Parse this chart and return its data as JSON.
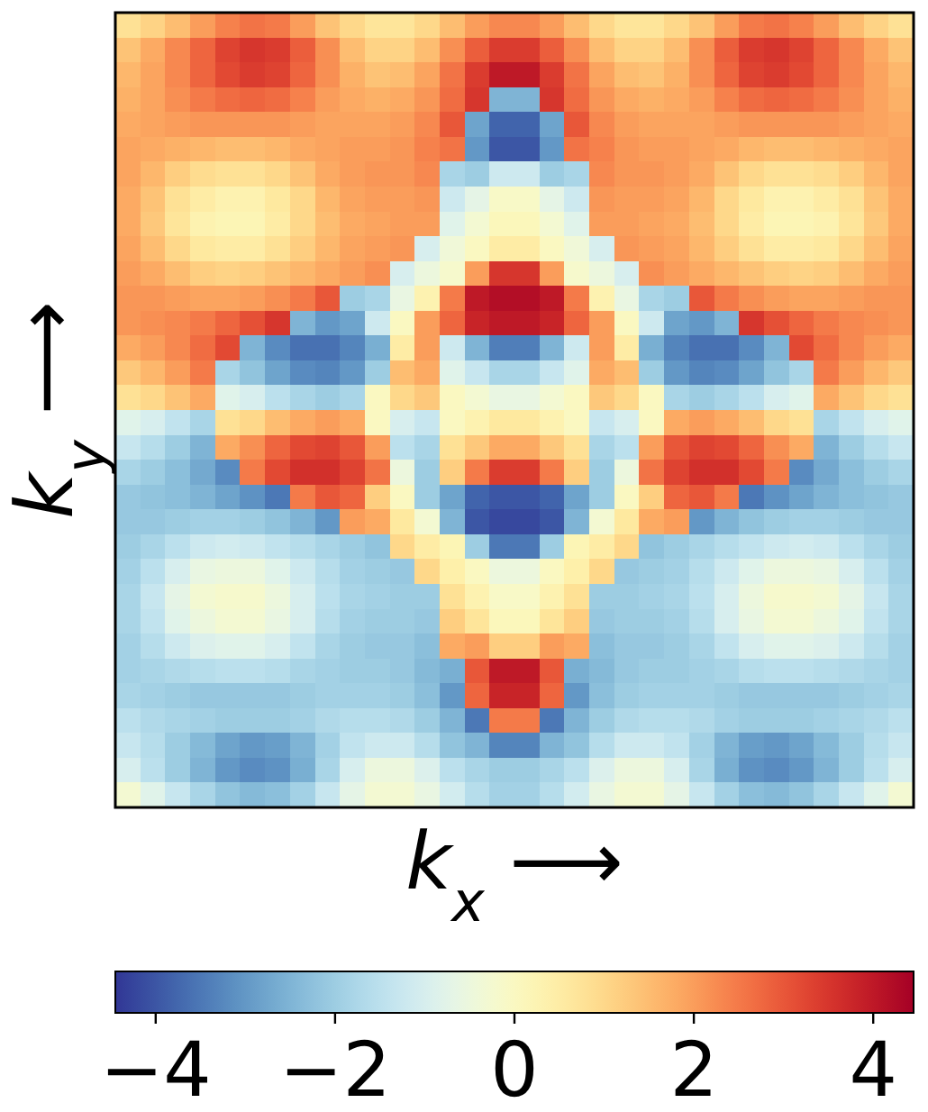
{
  "chart_data": {
    "type": "heatmap",
    "xlabel": "k$_{x}$ ⟶",
    "ylabel": "k$_{y}$ ⟶",
    "categories": [
      null,
      null,
      null,
      null,
      null,
      null,
      null,
      null,
      null,
      null,
      null,
      null,
      null,
      null,
      null,
      null,
      null,
      null,
      null,
      null,
      null,
      null,
      null,
      null,
      null,
      null,
      null,
      null,
      null,
      null,
      null,
      null
    ],
    "y_categories": [
      null,
      null,
      null,
      null,
      null,
      null,
      null,
      null,
      null,
      null,
      null,
      null,
      null,
      null,
      null,
      null,
      null,
      null,
      null,
      null,
      null,
      null,
      null,
      null,
      null,
      null,
      null,
      null,
      null,
      null,
      null,
      null
    ],
    "clim": [
      -4.45,
      4.45
    ],
    "cticks": [
      {
        "value": -4,
        "label": "−4"
      },
      {
        "value": -2,
        "label": "−2"
      },
      0,
      2,
      4
    ],
    "cells": [
      [
        0.8,
        1.1,
        1.5,
        2,
        2.4,
        2.6,
        2.5,
        2,
        1.4,
        1,
        0.7,
        0.7,
        1,
        1.5,
        2,
        2.3,
        2.3,
        2,
        1.5,
        1,
        0.7,
        0.7,
        1,
        1.4,
        2,
        2.5,
        2.6,
        2.4,
        2,
        1.5,
        1.1,
        0.8
      ],
      [
        1.4,
        1.8,
        2.3,
        2.8,
        3.3,
        3.5,
        3.4,
        2.9,
        2.2,
        1.5,
        1.1,
        1.1,
        1.5,
        2.2,
        2.9,
        3.4,
        3.4,
        2.9,
        2.2,
        1.5,
        1.1,
        1.1,
        1.5,
        2.2,
        2.9,
        3.4,
        3.5,
        3.3,
        2.8,
        2.3,
        1.8,
        1.4
      ],
      [
        1.6,
        1.9,
        2.3,
        2.8,
        3.2,
        3.4,
        3.3,
        2.8,
        2.2,
        1.7,
        1.4,
        1.5,
        1.9,
        2.6,
        3.4,
        4,
        4,
        3.4,
        2.6,
        1.9,
        1.5,
        1.4,
        1.7,
        2.2,
        2.8,
        3.3,
        3.4,
        3.2,
        2.8,
        2.3,
        1.9,
        1.6
      ],
      [
        1.7,
        1.9,
        2.2,
        2.5,
        2.7,
        2.8,
        2.7,
        2.4,
        2,
        1.8,
        1.7,
        1.8,
        2.1,
        2.7,
        3.5,
        -2.5,
        -2.5,
        3.5,
        2.7,
        2.1,
        1.8,
        1.7,
        1.8,
        2,
        2.4,
        2.7,
        2.8,
        2.7,
        2.5,
        2.2,
        1.9,
        1.7
      ],
      [
        1.8,
        1.9,
        2,
        2.1,
        2.1,
        2.1,
        2.1,
        2,
        1.9,
        1.9,
        1.9,
        2,
        2.3,
        3,
        -2.8,
        -3.8,
        -3.8,
        -2.8,
        3,
        2.3,
        2,
        1.9,
        1.9,
        1.9,
        2,
        2.1,
        2.1,
        2.1,
        2.1,
        2,
        1.9,
        1.8
      ],
      [
        1.9,
        1.8,
        1.7,
        1.6,
        1.5,
        1.5,
        1.6,
        1.8,
        1.9,
        2,
        2,
        2.1,
        2.4,
        2.6,
        -3,
        -4,
        -4,
        -3,
        2.6,
        2.4,
        2.1,
        2,
        2,
        1.9,
        1.8,
        1.6,
        1.5,
        1.5,
        1.6,
        1.7,
        1.8,
        1.9
      ],
      [
        1.9,
        1.6,
        1.2,
        0.9,
        0.8,
        0.8,
        1,
        1.4,
        1.8,
        2,
        2.1,
        2.1,
        2.3,
        -1.8,
        -2,
        -1.2,
        -1.2,
        -2,
        -1.8,
        2.3,
        2.1,
        2.1,
        2,
        1.8,
        1.4,
        1,
        0.8,
        0.8,
        0.9,
        1.2,
        1.6,
        1.9
      ],
      [
        1.8,
        1.4,
        0.8,
        0.5,
        0.3,
        0.3,
        0.6,
        1,
        1.6,
        1.9,
        2,
        2,
        2.1,
        -1.2,
        -0.7,
        -0.1,
        -0.1,
        -0.7,
        -1.2,
        2.1,
        2,
        2,
        1.9,
        1.6,
        1,
        0.6,
        0.3,
        0.3,
        0.5,
        0.8,
        1.4,
        1.8
      ],
      [
        1.8,
        1.3,
        0.7,
        0.3,
        0.2,
        0.2,
        0.5,
        1,
        1.5,
        1.8,
        1.9,
        2,
        2,
        -0.8,
        -0.3,
        0.1,
        0.1,
        -0.3,
        -0.8,
        2,
        2,
        1.9,
        1.8,
        1.5,
        1,
        0.5,
        0.2,
        0.2,
        0.3,
        0.7,
        1.3,
        1.8
      ],
      [
        1.9,
        1.5,
        1,
        0.6,
        0.5,
        0.5,
        0.8,
        1.2,
        1.6,
        1.9,
        2,
        2.1,
        -1,
        -0.4,
        0,
        0.5,
        0.5,
        0,
        -0.4,
        -1,
        2.1,
        2,
        1.9,
        1.6,
        1.2,
        0.8,
        0.5,
        0.5,
        0.6,
        1,
        1.5,
        1.9
      ],
      [
        2,
        1.8,
        1.5,
        1.2,
        1.1,
        1.2,
        1.4,
        1.6,
        1.8,
        2,
        2.2,
        -1,
        -0.5,
        -0.2,
        2,
        3.5,
        3.5,
        2,
        -0.2,
        -0.5,
        -1,
        2.2,
        2,
        1.8,
        1.6,
        1.4,
        1.2,
        1.1,
        1.2,
        1.5,
        1.8,
        2
      ],
      [
        2.1,
        2.1,
        2,
        1.9,
        1.9,
        2,
        2.2,
        2.5,
        3,
        -2,
        -1.8,
        -0.6,
        0.3,
        2.5,
        4,
        4.2,
        4.2,
        4,
        2.5,
        0.3,
        -0.6,
        -1.8,
        -2,
        3,
        2.5,
        2.2,
        2,
        1.9,
        1.9,
        2,
        2.1,
        2.1
      ],
      [
        2.1,
        2.2,
        2.3,
        2.5,
        2.8,
        3.1,
        3.5,
        -2.5,
        -3,
        -2.8,
        -1.2,
        0,
        2,
        2.8,
        3.8,
        4,
        4,
        3.8,
        2.8,
        2,
        0,
        -1.2,
        -2.8,
        -3,
        -2.5,
        3.5,
        3.1,
        2.8,
        2.5,
        2.3,
        2.2,
        2.1
      ],
      [
        1.8,
        2,
        2.3,
        2.7,
        3.2,
        -2.5,
        -3.2,
        -3.6,
        -3.6,
        -3.3,
        -2.6,
        0.5,
        2,
        -1.2,
        -2.5,
        -3.4,
        -3.4,
        -2.5,
        -1.2,
        2,
        0.5,
        -2.6,
        -3.3,
        -3.6,
        -3.6,
        -3.2,
        -2.5,
        3.2,
        2.7,
        2.3,
        2,
        1.8
      ],
      [
        1.3,
        1.6,
        2,
        2.5,
        -1.8,
        -2.2,
        -2.8,
        -3.2,
        -3.3,
        -3,
        -2,
        1.5,
        1.8,
        -0.8,
        -1.3,
        -1.8,
        -1.8,
        -1.3,
        -0.8,
        1.8,
        1.5,
        -2,
        -3,
        -3.3,
        -3.2,
        -2.8,
        -2.2,
        -1.8,
        2.5,
        2,
        1.6,
        1.3
      ],
      [
        0.8,
        1,
        1.4,
        1.8,
        -0.8,
        -1,
        -1.5,
        -1.8,
        -2,
        -1.8,
        0,
        1,
        1.3,
        0,
        -0.3,
        -0.6,
        -0.6,
        -0.3,
        0,
        1.3,
        1,
        0,
        -1.8,
        -2,
        -1.8,
        -1.5,
        -1,
        -0.8,
        1.8,
        1.4,
        1,
        0.8
      ],
      [
        -0.8,
        -1,
        -1.4,
        -1.8,
        0.8,
        1,
        1.5,
        1.8,
        2,
        1.8,
        0,
        -1,
        -1.3,
        0,
        0.3,
        0.6,
        0.6,
        0.3,
        0,
        -1.3,
        -1,
        0,
        1.8,
        2,
        1.8,
        1.5,
        1,
        0.8,
        -1.8,
        -1.4,
        -1,
        -0.8
      ],
      [
        -1.3,
        -1.6,
        -2,
        -2.5,
        1.8,
        2.2,
        2.8,
        3.2,
        3.3,
        3,
        2,
        -1.5,
        -1.8,
        0.8,
        1.3,
        1.8,
        1.8,
        1.3,
        0.8,
        -1.8,
        -1.5,
        2,
        3,
        3.3,
        3.2,
        2.8,
        2.2,
        1.8,
        -2.5,
        -2,
        -1.6,
        -1.3
      ],
      [
        -1.8,
        -2,
        -2.3,
        -2.7,
        -3.2,
        2.5,
        3.2,
        3.6,
        3.6,
        3.3,
        2.6,
        -0.5,
        -2,
        1.2,
        2.5,
        3.4,
        3.4,
        2.5,
        1.2,
        -2,
        -0.5,
        2.6,
        3.3,
        3.6,
        3.6,
        3.2,
        2.5,
        -3.2,
        -2.7,
        -2.3,
        -2,
        -1.8
      ],
      [
        -2.1,
        -2.2,
        -2.3,
        -2.5,
        -2.8,
        -3.1,
        -3.5,
        2.5,
        3,
        2.8,
        1.2,
        0,
        -2,
        -2.8,
        -3.8,
        -4,
        -4,
        -3.8,
        -2.8,
        -2,
        0,
        1.2,
        2.8,
        3,
        2.5,
        -3.5,
        -3.1,
        -2.8,
        -2.5,
        -2.3,
        -2.2,
        -2.1
      ],
      [
        -2.1,
        -2.1,
        -2,
        -1.9,
        -1.9,
        -2,
        -2.2,
        -2.5,
        -3,
        2,
        1.8,
        0.6,
        -0.3,
        -2.5,
        -4,
        -4.2,
        -4.2,
        -4,
        -2.5,
        -0.3,
        0.6,
        1.8,
        2,
        -3,
        -2.5,
        -2.2,
        -2,
        -1.9,
        -1.9,
        -2,
        -2.1,
        -2.1
      ],
      [
        -2,
        -1.8,
        -1.5,
        -1.2,
        -1.1,
        -1.2,
        -1.4,
        -1.6,
        -1.8,
        -2,
        -2.2,
        1,
        0.5,
        0.2,
        -2,
        -3.5,
        -3.5,
        -2,
        0.2,
        0.5,
        1,
        -2.2,
        -2,
        -1.8,
        -1.6,
        -1.4,
        -1.2,
        -1.1,
        -1.2,
        -1.5,
        -1.8,
        -2
      ],
      [
        -1.9,
        -1.5,
        -1,
        -0.6,
        -0.5,
        -0.5,
        -0.8,
        -1.2,
        -1.6,
        -1.9,
        -2,
        -2.1,
        1,
        0.4,
        0,
        -0.5,
        -0.5,
        0,
        0.4,
        1,
        -2.1,
        -2,
        -1.9,
        -1.6,
        -1.2,
        -0.8,
        -0.5,
        -0.5,
        -0.6,
        -1,
        -1.5,
        -1.9
      ],
      [
        -1.8,
        -1.3,
        -0.7,
        -0.3,
        -0.2,
        -0.2,
        -0.5,
        -1,
        -1.5,
        -1.8,
        -1.9,
        -2,
        -2,
        0.8,
        0.3,
        -0.1,
        -0.1,
        0.3,
        0.8,
        -2,
        -2,
        -1.9,
        -1.8,
        -1.5,
        -1,
        -0.5,
        -0.2,
        -0.2,
        -0.3,
        -0.7,
        -1.3,
        -1.8
      ],
      [
        -1.8,
        -1.4,
        -0.8,
        -0.5,
        -0.3,
        -0.3,
        -0.6,
        -1,
        -1.6,
        -1.9,
        -2,
        -2,
        -2.1,
        1.2,
        0.7,
        0.1,
        0.1,
        0.7,
        1.2,
        -2.1,
        -2,
        -2,
        -1.9,
        -1.6,
        -1,
        -0.6,
        -0.3,
        -0.3,
        -0.5,
        -0.8,
        -1.4,
        -1.8
      ],
      [
        -1.9,
        -1.6,
        -1.2,
        -0.9,
        -0.8,
        -0.8,
        -1,
        -1.4,
        -1.8,
        -2,
        -2.1,
        -2.1,
        -2.3,
        1.8,
        2,
        1.2,
        1.2,
        2,
        1.8,
        -2.3,
        -2.1,
        -2.1,
        -2,
        -1.8,
        -1.4,
        -1,
        -0.8,
        -0.8,
        -0.9,
        -1.2,
        -1.6,
        -1.9
      ],
      [
        -1.9,
        -1.8,
        -1.7,
        -1.6,
        -1.5,
        -1.5,
        -1.6,
        -1.8,
        -1.9,
        -2,
        -2,
        -2.1,
        -2.4,
        -2.6,
        3,
        4,
        4,
        3,
        -2.6,
        -2.4,
        -2.1,
        -2,
        -2,
        -1.9,
        -1.8,
        -1.6,
        -1.5,
        -1.5,
        -1.6,
        -1.7,
        -1.8,
        -1.9
      ],
      [
        -1.8,
        -1.9,
        -2,
        -2.1,
        -2.1,
        -2.1,
        -2.1,
        -2,
        -1.9,
        -1.9,
        -1.9,
        -2,
        -2.3,
        -3,
        2.8,
        3.8,
        3.8,
        2.8,
        -3,
        -2.3,
        -2,
        -1.9,
        -1.9,
        -1.9,
        -2,
        -2.1,
        -2.1,
        -2.1,
        -2.1,
        -2,
        -1.9,
        -1.8
      ],
      [
        -1.5,
        -1.7,
        -1.8,
        -1.9,
        -2,
        -2,
        -2,
        -1.9,
        -1.7,
        -1.6,
        -1.6,
        -1.7,
        -2,
        -2.5,
        -3.5,
        2.5,
        2.5,
        -3.5,
        -2.5,
        -2,
        -1.7,
        -1.6,
        -1.6,
        -1.7,
        -1.9,
        -2,
        -2,
        -2,
        -1.9,
        -1.8,
        -1.7,
        -1.5
      ],
      [
        -1.3,
        -1.6,
        -2,
        -2.4,
        -2.8,
        -3,
        -2.9,
        -2.5,
        -1.9,
        -1.4,
        -1.2,
        -1.2,
        -1.6,
        -2.2,
        -2.5,
        -3.3,
        -3.3,
        -2.5,
        -2.2,
        -1.6,
        -1.2,
        -1.2,
        -1.4,
        -1.9,
        -2.5,
        -2.9,
        -3,
        -2.8,
        -2.4,
        -2,
        -1.6,
        -1.3
      ],
      [
        -1,
        -1.5,
        -2,
        -2.5,
        -3,
        -3.2,
        -3.1,
        -2.6,
        -1.8,
        -1,
        -0.5,
        -0.5,
        -0.9,
        -1.5,
        -1.8,
        -2,
        -2,
        -1.8,
        -1.5,
        -0.9,
        -0.5,
        -0.5,
        -1,
        -1.8,
        -2.6,
        -3.1,
        -3.2,
        -3,
        -2.5,
        -2,
        -1.5,
        -1
      ],
      [
        -0.3,
        -0.8,
        -1.3,
        -1.8,
        -2.2,
        -2.4,
        -2.3,
        -1.9,
        -1.3,
        -0.7,
        -0.3,
        -0.3,
        -0.6,
        -1.1,
        -1.6,
        -1.9,
        -1.9,
        -1.6,
        -1.1,
        -0.6,
        -0.3,
        -0.3,
        -0.7,
        -1.3,
        -1.9,
        -2.3,
        -2.4,
        -2.2,
        -1.8,
        -1.3,
        -0.8,
        -0.3
      ]
    ]
  }
}
